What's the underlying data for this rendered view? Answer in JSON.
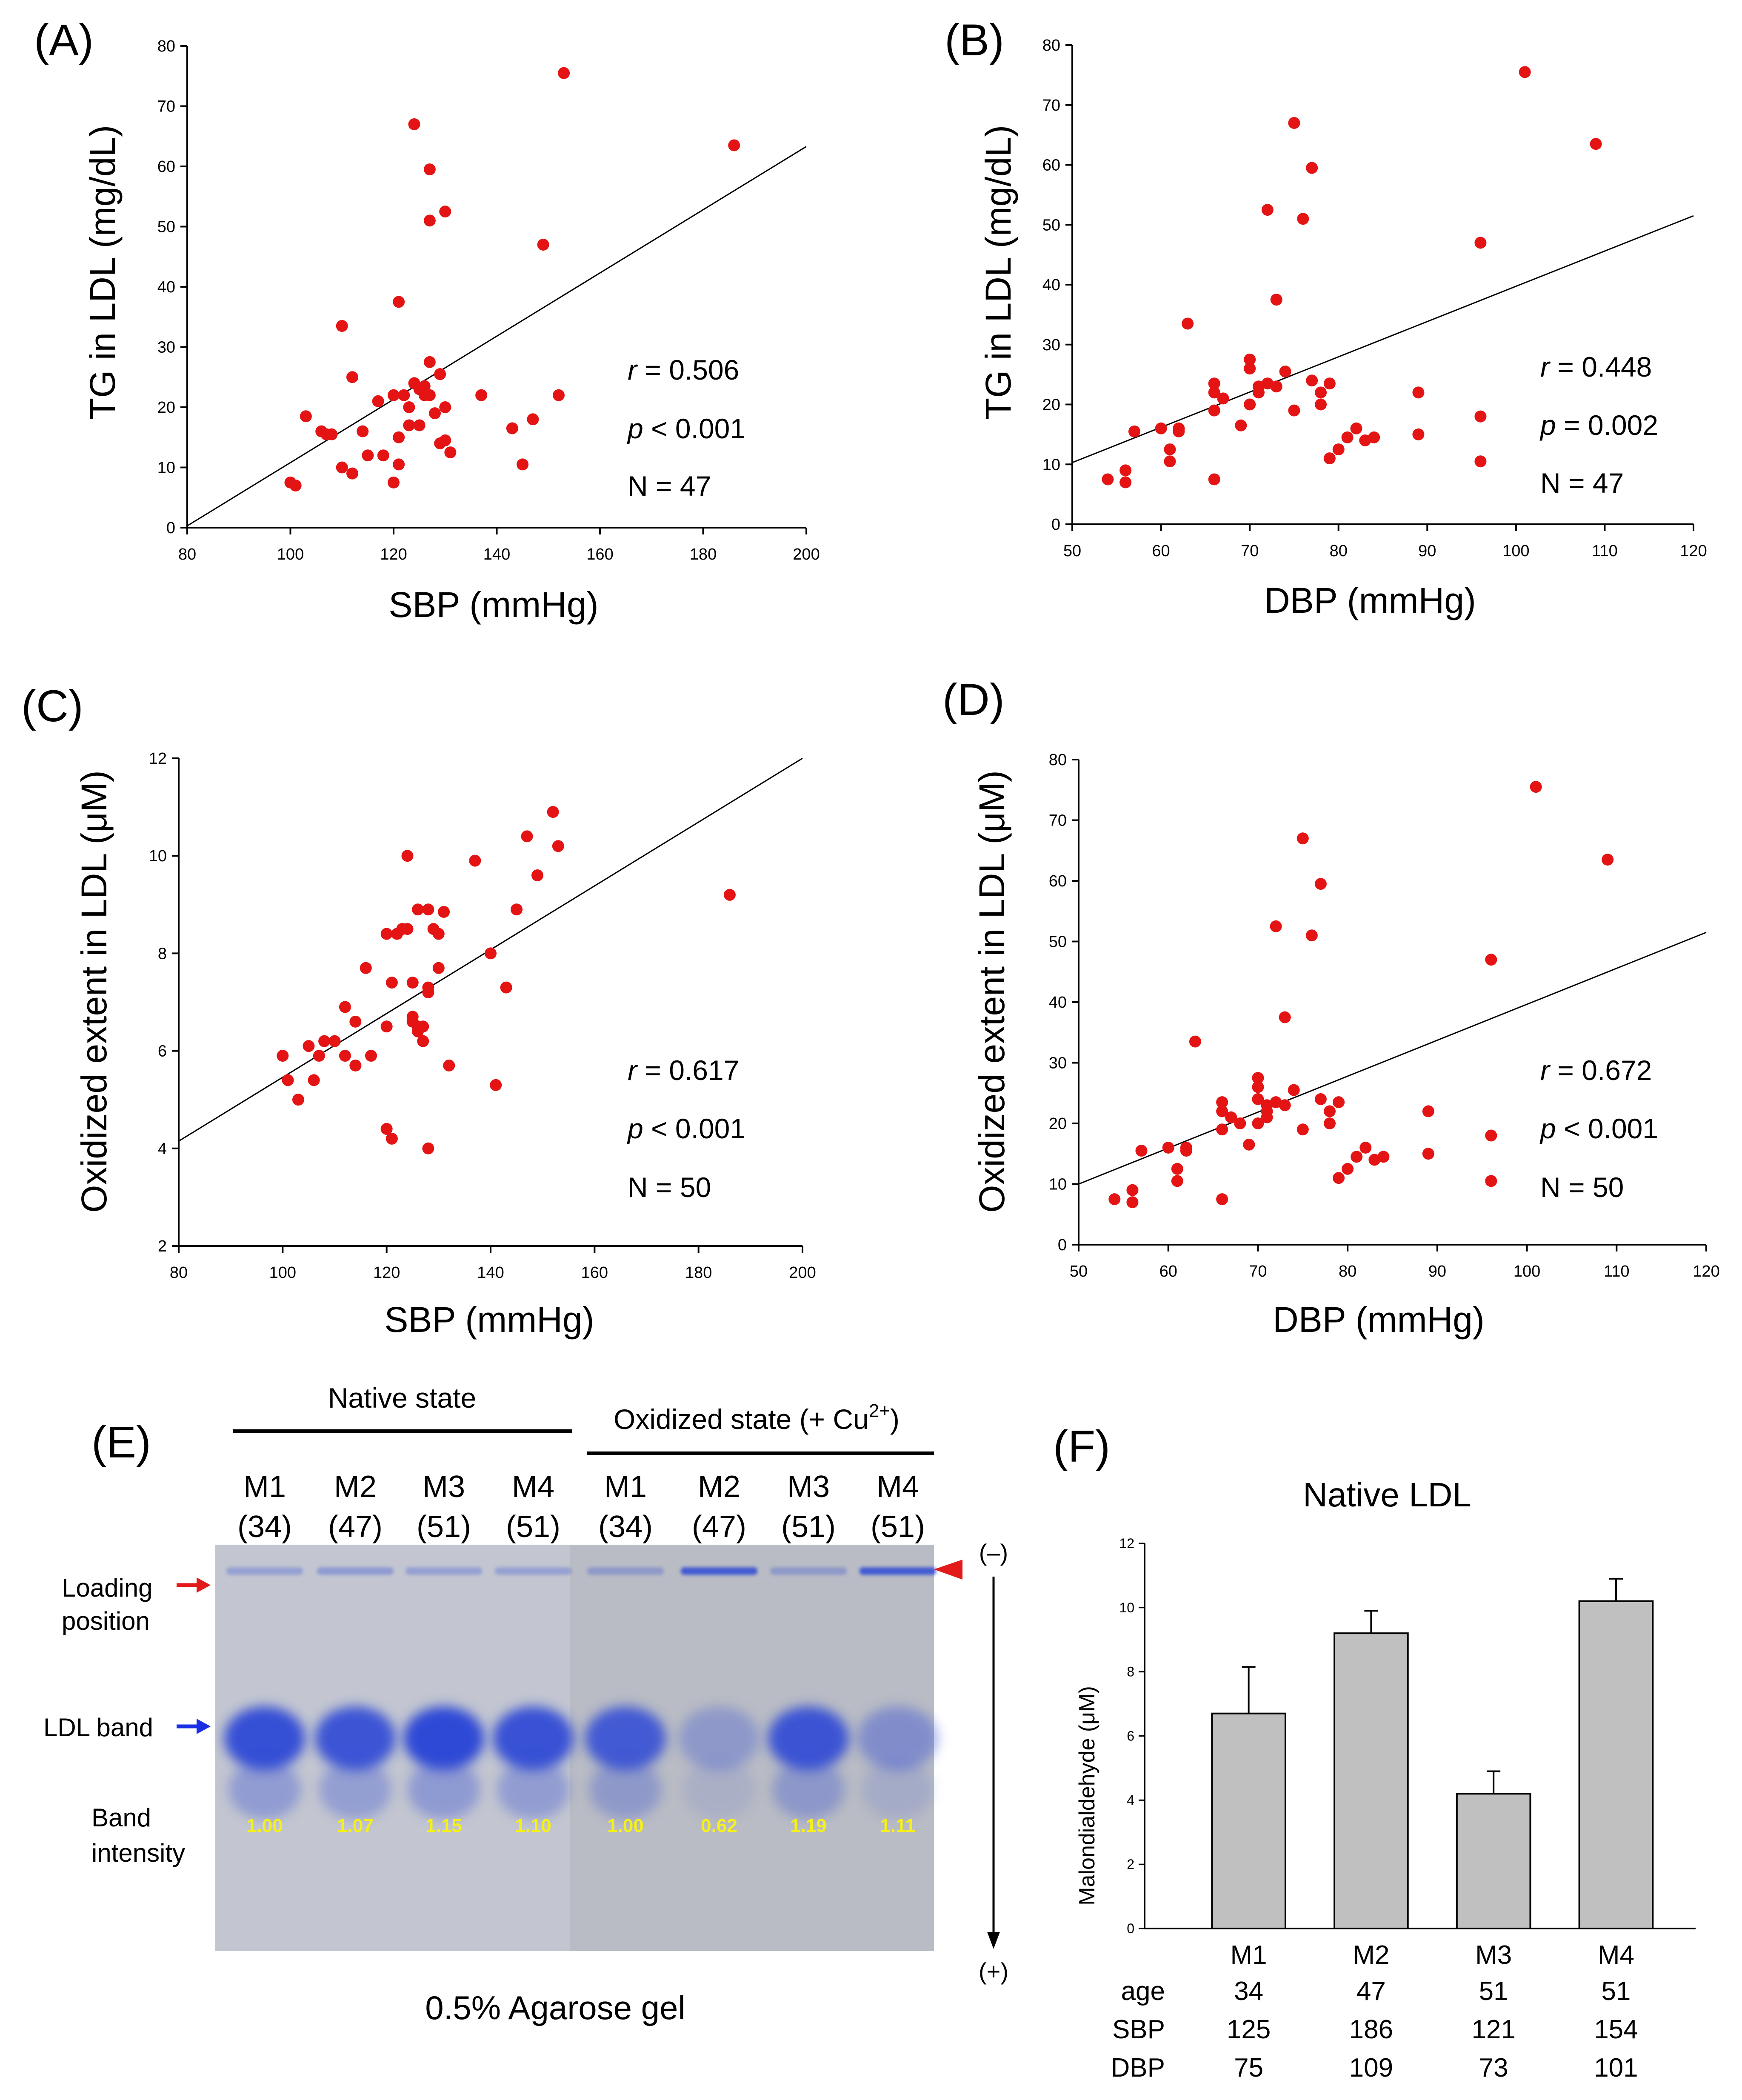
{
  "colors": {
    "point": "#e41414",
    "line": "#000000",
    "gel_left": "#c3c6d0",
    "gel_right": "#b9bcc4",
    "band": "#2d49d6",
    "intensity_text": "#f5f01a",
    "bar_fill": "#c0c0c0",
    "arrow_red": "#e31a1a",
    "arrow_blue": "#1a2ee3"
  },
  "chart_data": [
    {
      "type": "scatter",
      "panel_label": "(A)",
      "xlabel": "SBP (mmHg)",
      "ylabel": "TG in LDL (mg/dL)",
      "xlim": [
        80,
        200
      ],
      "ylim": [
        0,
        80
      ],
      "xticks": [
        "80",
        "100",
        "120",
        "140",
        "160",
        "180",
        "200"
      ],
      "yticks": [
        "0",
        "10",
        "20",
        "30",
        "40",
        "50",
        "60",
        "70",
        "80"
      ],
      "fit_line": [
        [
          80,
          0.3
        ],
        [
          200,
          63.3
        ]
      ],
      "stats": {
        "r_symbol": "r",
        "r_text": " =  0.506",
        "p_symbol": "p",
        "p_text": " < 0.001",
        "n_text": "N = 47"
      },
      "points": [
        [
          100,
          7.5
        ],
        [
          101,
          7
        ],
        [
          103,
          18.5
        ],
        [
          106,
          16
        ],
        [
          107,
          15.5
        ],
        [
          108,
          15.5
        ],
        [
          110,
          10
        ],
        [
          110,
          33.5
        ],
        [
          112,
          9
        ],
        [
          112,
          25
        ],
        [
          114,
          16
        ],
        [
          115,
          12
        ],
        [
          117,
          21
        ],
        [
          118,
          12
        ],
        [
          120,
          7.5
        ],
        [
          120,
          22
        ],
        [
          121,
          10.5
        ],
        [
          121,
          15
        ],
        [
          121,
          37.5
        ],
        [
          122,
          22
        ],
        [
          123,
          17
        ],
        [
          123,
          20
        ],
        [
          124,
          24
        ],
        [
          124,
          67
        ],
        [
          125,
          23
        ],
        [
          125,
          17
        ],
        [
          126,
          22
        ],
        [
          126,
          23.5
        ],
        [
          127,
          22
        ],
        [
          127,
          27.5
        ],
        [
          127,
          51
        ],
        [
          127,
          59.5
        ],
        [
          128,
          19
        ],
        [
          129,
          25.5
        ],
        [
          129,
          14
        ],
        [
          130,
          14.5
        ],
        [
          130,
          20
        ],
        [
          130,
          52.5
        ],
        [
          137,
          22
        ],
        [
          143,
          16.5
        ],
        [
          145,
          10.5
        ],
        [
          147,
          18
        ],
        [
          149,
          47
        ],
        [
          152,
          22
        ],
        [
          153,
          75.5
        ],
        [
          186,
          63.5
        ],
        [
          131,
          12.5
        ]
      ]
    },
    {
      "type": "scatter",
      "panel_label": "(B)",
      "xlabel": "DBP (mmHg)",
      "ylabel": "TG in LDL (mg/dL)",
      "xlim": [
        50,
        120
      ],
      "ylim": [
        0,
        80
      ],
      "xticks": [
        "50",
        "60",
        "70",
        "80",
        "90",
        "100",
        "110",
        "120"
      ],
      "yticks": [
        "0",
        "10",
        "20",
        "30",
        "40",
        "50",
        "60",
        "70",
        "80"
      ],
      "fit_line": [
        [
          50,
          10.3
        ],
        [
          120,
          51.5
        ]
      ],
      "stats": {
        "r_symbol": "r",
        "r_text": " =  0.448",
        "p_symbol": "p",
        "p_text": " = 0.002",
        "n_text": "N = 47"
      },
      "points": [
        [
          54,
          7.5
        ],
        [
          56,
          7
        ],
        [
          56,
          9
        ],
        [
          57,
          15.5
        ],
        [
          60,
          16
        ],
        [
          61,
          10.5
        ],
        [
          61,
          12.5
        ],
        [
          62,
          15.5
        ],
        [
          62,
          16
        ],
        [
          63,
          33.5
        ],
        [
          66,
          7.5
        ],
        [
          66,
          19
        ],
        [
          66,
          22
        ],
        [
          66,
          23.5
        ],
        [
          67,
          21
        ],
        [
          69,
          16.5
        ],
        [
          70,
          20
        ],
        [
          70,
          26
        ],
        [
          70,
          27.5
        ],
        [
          71,
          22
        ],
        [
          71,
          23
        ],
        [
          72,
          52.5
        ],
        [
          73,
          23
        ],
        [
          73,
          37.5
        ],
        [
          74,
          25.5
        ],
        [
          75,
          19
        ],
        [
          75,
          67
        ],
        [
          76,
          51
        ],
        [
          77,
          24
        ],
        [
          77,
          59.5
        ],
        [
          78,
          20
        ],
        [
          78,
          22
        ],
        [
          79,
          23.5
        ],
        [
          79,
          11
        ],
        [
          80,
          12.5
        ],
        [
          81,
          14.5
        ],
        [
          82,
          16
        ],
        [
          83,
          14
        ],
        [
          84,
          14.5
        ],
        [
          89,
          15
        ],
        [
          89,
          22
        ],
        [
          96,
          18
        ],
        [
          96,
          10.5
        ],
        [
          96,
          47
        ],
        [
          101,
          75.5
        ],
        [
          109,
          63.5
        ],
        [
          72,
          23.5
        ]
      ]
    },
    {
      "type": "scatter",
      "panel_label": "(C)",
      "xlabel": "SBP (mmHg)",
      "ylabel": "Oxidized extent in LDL (μM)",
      "xlim": [
        80,
        200
      ],
      "ylim": [
        2,
        12
      ],
      "xticks": [
        "80",
        "100",
        "120",
        "140",
        "160",
        "180",
        "200"
      ],
      "yticks": [
        "2",
        "4",
        "6",
        "8",
        "10",
        "12"
      ],
      "fit_line": [
        [
          80,
          4.15
        ],
        [
          200,
          12
        ]
      ],
      "stats": {
        "r_symbol": "r",
        "r_text": " =  0.617",
        "p_symbol": "p",
        "p_text": " < 0.001",
        "n_text": "N = 50"
      },
      "points": [
        [
          100,
          5.9
        ],
        [
          101,
          5.4
        ],
        [
          103,
          5
        ],
        [
          105,
          6.1
        ],
        [
          106,
          5.4
        ],
        [
          107,
          5.9
        ],
        [
          108,
          6.2
        ],
        [
          110,
          6.2
        ],
        [
          112,
          6.9
        ],
        [
          112,
          5.9
        ],
        [
          114,
          6.6
        ],
        [
          114,
          5.7
        ],
        [
          116,
          7.7
        ],
        [
          117,
          5.9
        ],
        [
          120,
          4.4
        ],
        [
          120,
          6.5
        ],
        [
          120,
          8.4
        ],
        [
          121,
          4.2
        ],
        [
          121,
          7.4
        ],
        [
          122,
          8.4
        ],
        [
          123,
          8.5
        ],
        [
          124,
          10
        ],
        [
          124,
          8.5
        ],
        [
          125,
          6.6
        ],
        [
          125,
          7.4
        ],
        [
          126,
          6.5
        ],
        [
          126,
          8.9
        ],
        [
          126,
          6.4
        ],
        [
          127,
          6.2
        ],
        [
          127,
          6.5
        ],
        [
          128,
          7.3
        ],
        [
          128,
          8.9
        ],
        [
          129,
          8.5
        ],
        [
          130,
          8.4
        ],
        [
          130,
          7.7
        ],
        [
          131,
          8.85
        ],
        [
          132,
          5.7
        ],
        [
          137,
          9.9
        ],
        [
          140,
          8
        ],
        [
          143,
          7.3
        ],
        [
          145,
          8.9
        ],
        [
          147,
          10.4
        ],
        [
          149,
          9.6
        ],
        [
          152,
          10.9
        ],
        [
          153,
          10.2
        ],
        [
          186,
          9.2
        ],
        [
          128,
          4
        ],
        [
          141,
          5.3
        ],
        [
          128,
          7.2
        ],
        [
          125,
          6.7
        ]
      ]
    },
    {
      "type": "scatter",
      "panel_label": "(D)",
      "xlabel": "DBP (mmHg)",
      "ylabel": "Oxidized extent in LDL (μM)",
      "xlim": [
        50,
        120
      ],
      "ylim": [
        0,
        80
      ],
      "xticks": [
        "50",
        "60",
        "70",
        "80",
        "90",
        "100",
        "110",
        "120"
      ],
      "yticks": [
        "0",
        "10",
        "20",
        "30",
        "40",
        "50",
        "60",
        "70",
        "80"
      ],
      "fit_line": [
        [
          50,
          10
        ],
        [
          120,
          51.5
        ]
      ],
      "stats": {
        "r_symbol": "r",
        "r_text": " =  0.672",
        "p_symbol": "p",
        "p_text": " < 0.001",
        "n_text": "N = 50"
      },
      "points": [
        [
          54,
          7.5
        ],
        [
          56,
          7
        ],
        [
          56,
          9
        ],
        [
          57,
          15.5
        ],
        [
          60,
          16
        ],
        [
          61,
          10.5
        ],
        [
          61,
          12.5
        ],
        [
          62,
          15.5
        ],
        [
          62,
          16
        ],
        [
          63,
          33.5
        ],
        [
          66,
          7.5
        ],
        [
          66,
          19
        ],
        [
          66,
          22
        ],
        [
          66,
          23.5
        ],
        [
          67,
          21
        ],
        [
          69,
          16.5
        ],
        [
          70,
          20
        ],
        [
          70,
          26
        ],
        [
          70,
          27.5
        ],
        [
          71,
          22
        ],
        [
          71,
          23
        ],
        [
          72,
          52.5
        ],
        [
          73,
          23
        ],
        [
          73,
          37.5
        ],
        [
          74,
          25.5
        ],
        [
          75,
          19
        ],
        [
          75,
          67
        ],
        [
          76,
          51
        ],
        [
          77,
          24
        ],
        [
          77,
          59.5
        ],
        [
          78,
          20
        ],
        [
          78,
          22
        ],
        [
          79,
          23.5
        ],
        [
          79,
          11
        ],
        [
          80,
          12.5
        ],
        [
          81,
          14.5
        ],
        [
          82,
          16
        ],
        [
          83,
          14
        ],
        [
          84,
          14.5
        ],
        [
          89,
          15
        ],
        [
          89,
          22
        ],
        [
          96,
          18
        ],
        [
          96,
          10.5
        ],
        [
          96,
          47
        ],
        [
          101,
          75.5
        ],
        [
          109,
          63.5
        ],
        [
          72,
          23.5
        ],
        [
          71,
          21
        ],
        [
          70,
          24
        ],
        [
          68,
          20
        ]
      ]
    },
    {
      "type": "bar",
      "panel_label": "(F)",
      "title": "Native LDL",
      "ylabel": "Malondialdehyde (μM)",
      "ylim": [
        0,
        12
      ],
      "yticks": [
        "0",
        "2",
        "4",
        "6",
        "8",
        "10",
        "12"
      ],
      "categories": [
        "M1",
        "M2",
        "M3",
        "M4"
      ],
      "values": [
        6.7,
        9.2,
        4.2,
        10.2
      ],
      "errors": [
        1.45,
        0.7,
        0.7,
        0.7
      ],
      "table_row_labels": [
        "age",
        "SBP",
        "DBP"
      ],
      "table": [
        [
          "34",
          "47",
          "51",
          "51"
        ],
        [
          "125",
          "186",
          "121",
          "154"
        ],
        [
          "75",
          "109",
          "73",
          "101"
        ]
      ]
    }
  ],
  "gel": {
    "panel_label": "(E)",
    "native_header": "Native state",
    "oxidized_header": "Oxidized state (+ Cu",
    "oxidized_sup": "2+",
    "oxidized_close": ")",
    "lanes": [
      {
        "name": "M1",
        "age": "(34)",
        "intensity": "1.00",
        "band_strength": 0.95,
        "well_strength": 0.3
      },
      {
        "name": "M2",
        "age": "(47)",
        "intensity": "1.07",
        "band_strength": 0.9,
        "well_strength": 0.35
      },
      {
        "name": "M3",
        "age": "(51)",
        "intensity": "1.15",
        "band_strength": 1.0,
        "well_strength": 0.3
      },
      {
        "name": "M4",
        "age": "(51)",
        "intensity": "1.10",
        "band_strength": 0.93,
        "well_strength": 0.3
      },
      {
        "name": "M1",
        "age": "(34)",
        "intensity": "1.00",
        "band_strength": 0.85,
        "well_strength": 0.3
      },
      {
        "name": "M2",
        "age": "(47)",
        "intensity": "0.62",
        "band_strength": 0.3,
        "well_strength": 0.85
      },
      {
        "name": "M3",
        "age": "(51)",
        "intensity": "1.19",
        "band_strength": 0.9,
        "well_strength": 0.3
      },
      {
        "name": "M4",
        "age": "(51)",
        "intensity": "1.11",
        "band_strength": 0.4,
        "well_strength": 0.85
      }
    ],
    "loading_label_1": "Loading",
    "loading_label_2": "position",
    "ldl_band_label": "LDL band",
    "band_intensity_label_1": "Band",
    "band_intensity_label_2": "intensity",
    "cathode": "(–)",
    "anode": "(+)",
    "gel_caption": "0.5% Agarose gel"
  }
}
